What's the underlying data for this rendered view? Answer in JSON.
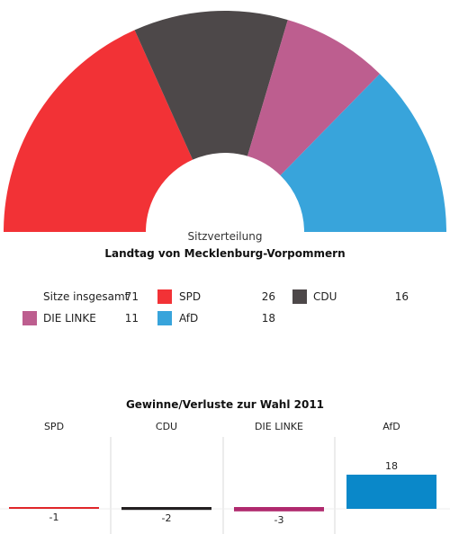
{
  "seat_chart": {
    "subtitle": "Sitzverteilung",
    "title": "Landtag von Mecklenburg-Vorpommern",
    "total_label": "Sitze insgesamt",
    "total": "71"
  },
  "chart_data": [
    {
      "type": "pie",
      "subtitle": "Sitzverteilung",
      "title": "Landtag von Mecklenburg-Vorpommern",
      "categories": [
        "SPD",
        "CDU",
        "DIE LINKE",
        "AfD"
      ],
      "values": [
        26,
        16,
        11,
        18
      ],
      "colors": [
        "#f23236",
        "#4d4849",
        "#bd5e8f",
        "#38a4db"
      ]
    },
    {
      "type": "bar",
      "title": "Gewinne/Verluste zur Wahl 2011",
      "categories": [
        "SPD",
        "CDU",
        "DIE LINKE",
        "AfD"
      ],
      "values": [
        -1,
        -2,
        -3,
        18
      ],
      "colors": [
        "#e0262a",
        "#231f20",
        "#b02a6e",
        "#0a88c9"
      ]
    }
  ],
  "legend": [
    {
      "label": "SPD",
      "value": "26"
    },
    {
      "label": "CDU",
      "value": "16"
    },
    {
      "label": "DIE LINKE",
      "value": "11"
    },
    {
      "label": "AfD",
      "value": "18"
    }
  ],
  "gains": {
    "title": "Gewinne/Verluste zur Wahl 2011",
    "labels": [
      "SPD",
      "CDU",
      "DIE LINKE",
      "AfD"
    ],
    "value_labels": [
      "-1",
      "-2",
      "-3",
      "18"
    ]
  }
}
